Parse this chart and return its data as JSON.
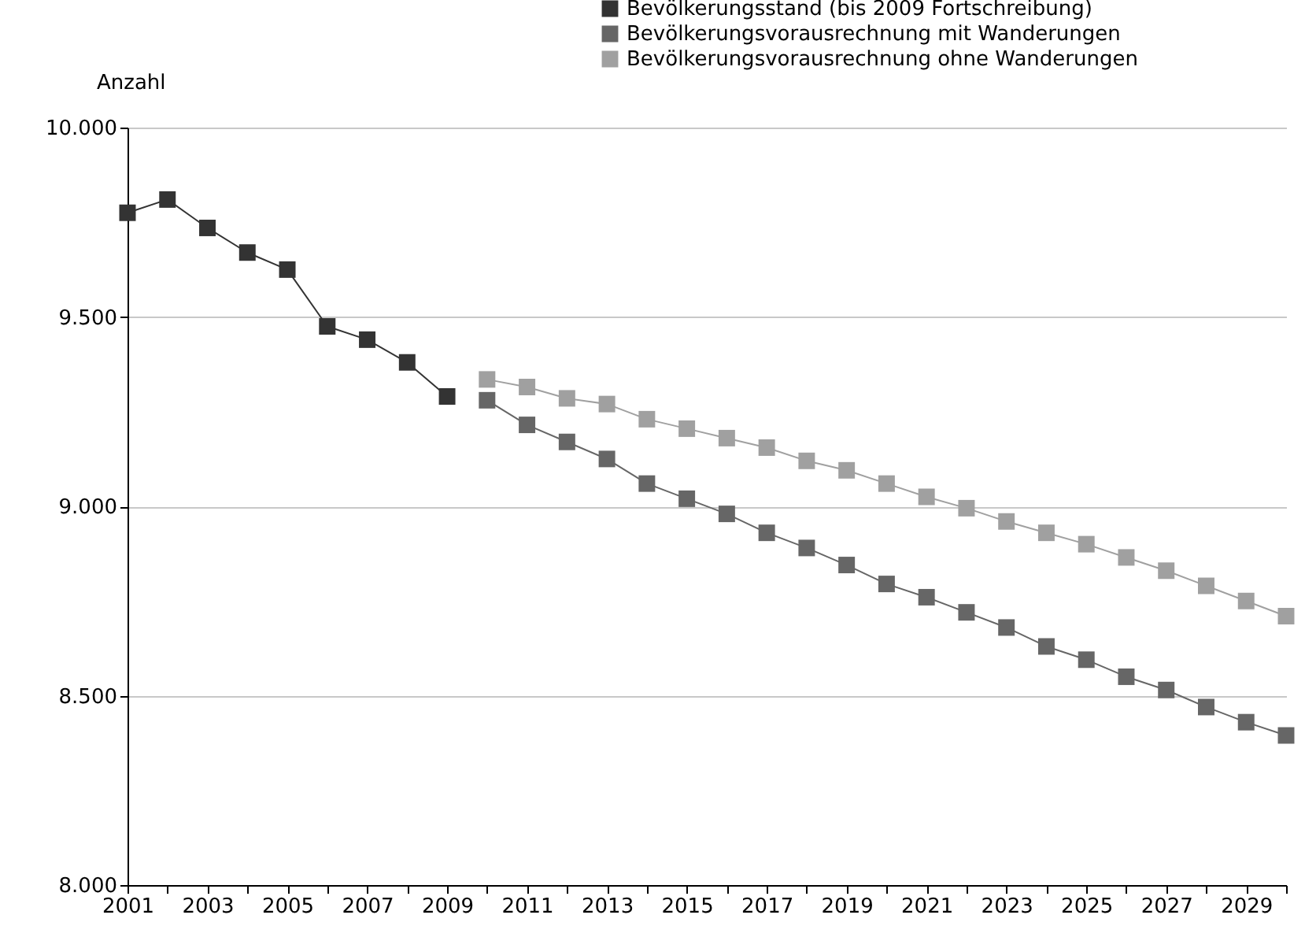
{
  "chart_data": {
    "type": "line",
    "ylabel": "Anzahl",
    "xlim": [
      2001,
      2030
    ],
    "ylim": [
      8000,
      10000
    ],
    "yticks": [
      {
        "value": 8000,
        "label": "8.000"
      },
      {
        "value": 8500,
        "label": "8.500"
      },
      {
        "value": 9000,
        "label": "9.000"
      },
      {
        "value": 9500,
        "label": "9.500"
      },
      {
        "value": 10000,
        "label": "10.000"
      }
    ],
    "xticks": [
      2001,
      {
        "value": 2002,
        "label": null
      },
      2003,
      {
        "value": 2004,
        "label": null
      },
      2005,
      {
        "value": 2006,
        "label": null
      },
      2007,
      {
        "value": 2008,
        "label": null
      },
      2009,
      {
        "value": 2010,
        "label": null
      },
      2011,
      {
        "value": 2012,
        "label": null
      },
      2013,
      {
        "value": 2014,
        "label": null
      },
      2015,
      {
        "value": 2016,
        "label": null
      },
      2017,
      {
        "value": 2018,
        "label": null
      },
      2019,
      {
        "value": 2020,
        "label": null
      },
      2021,
      {
        "value": 2022,
        "label": null
      },
      2023,
      {
        "value": 2024,
        "label": null
      },
      2025,
      {
        "value": 2026,
        "label": null
      },
      2027,
      {
        "value": 2028,
        "label": null
      },
      2029,
      {
        "value": 2030,
        "label": null
      }
    ],
    "grid": "y",
    "legend": "top right",
    "marker": "square",
    "line_style": "solid",
    "series": [
      {
        "name": "Bevölkerungsstand (bis 2009 Fortschreibung)",
        "color": "#333333",
        "x": [
          2001,
          2002,
          2003,
          2004,
          2005,
          2006,
          2007,
          2008,
          2009
        ],
        "values": [
          9775,
          9810,
          9735,
          9670,
          9625,
          9475,
          9440,
          9380,
          9290
        ]
      },
      {
        "name": "Bevölkerungsvorausrechnung mit Wanderungen",
        "color": "#666666",
        "x": [
          2010,
          2011,
          2012,
          2013,
          2014,
          2015,
          2016,
          2017,
          2018,
          2019,
          2020,
          2021,
          2022,
          2023,
          2024,
          2025,
          2026,
          2027,
          2028,
          2029,
          2030
        ],
        "values": [
          9280,
          9215,
          9170,
          9125,
          9060,
          9020,
          8980,
          8930,
          8890,
          8845,
          8795,
          8760,
          8720,
          8680,
          8630,
          8595,
          8550,
          8515,
          8470,
          8430,
          8395
        ]
      },
      {
        "name": "Bevölkerungsvorausrechnung ohne Wanderungen",
        "color": "#a0a0a0",
        "x": [
          2010,
          2011,
          2012,
          2013,
          2014,
          2015,
          2016,
          2017,
          2018,
          2019,
          2020,
          2021,
          2022,
          2023,
          2024,
          2025,
          2026,
          2027,
          2028,
          2029,
          2030
        ],
        "values": [
          9335,
          9315,
          9285,
          9270,
          9230,
          9205,
          9180,
          9155,
          9120,
          9095,
          9060,
          9025,
          8995,
          8960,
          8930,
          8900,
          8865,
          8830,
          8790,
          8750,
          8710
        ]
      }
    ]
  }
}
